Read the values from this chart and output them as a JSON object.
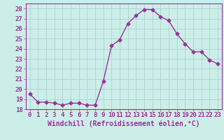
{
  "x": [
    0,
    1,
    2,
    3,
    4,
    5,
    6,
    7,
    8,
    9,
    10,
    11,
    12,
    13,
    14,
    15,
    16,
    17,
    18,
    19,
    20,
    21,
    22,
    23
  ],
  "y": [
    19.5,
    18.7,
    18.7,
    18.6,
    18.4,
    18.6,
    18.6,
    18.4,
    18.4,
    20.8,
    24.3,
    24.9,
    26.5,
    27.3,
    27.9,
    27.9,
    27.2,
    26.8,
    25.5,
    24.5,
    23.7,
    23.7,
    22.9,
    22.5
  ],
  "line_color": "#993399",
  "marker": "D",
  "markersize": 2.5,
  "linewidth": 1.0,
  "xlabel": "Windchill (Refroidissement éolien,°C)",
  "xlabel_fontsize": 7,
  "ylim": [
    18,
    28.5
  ],
  "xlim": [
    -0.5,
    23.5
  ],
  "yticks": [
    18,
    19,
    20,
    21,
    22,
    23,
    24,
    25,
    26,
    27,
    28
  ],
  "xticks": [
    0,
    1,
    2,
    3,
    4,
    5,
    6,
    7,
    8,
    9,
    10,
    11,
    12,
    13,
    14,
    15,
    16,
    17,
    18,
    19,
    20,
    21,
    22,
    23
  ],
  "background_color": "#cceee8",
  "grid_color": "#aacccc",
  "tick_fontsize": 6.5,
  "tick_color": "#993399",
  "xlabel_color": "#993399",
  "spine_color": "#993399"
}
